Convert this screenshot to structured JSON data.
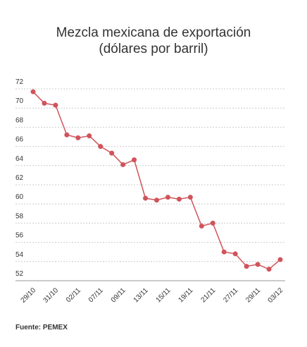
{
  "chart_data": {
    "type": "line",
    "title": "Mezcla mexicana de exportación",
    "subtitle": "(dólares por barril)",
    "source": "Fuente: PEMEX",
    "categories": [
      "29/10",
      null,
      "31/10",
      null,
      "02/11",
      null,
      "07/11",
      null,
      "09/11",
      null,
      "13/11",
      null,
      "15/11",
      null,
      "19/11",
      null,
      "21/11",
      null,
      "27/11",
      null,
      "29/11",
      null,
      "03/12"
    ],
    "series": [
      {
        "name": "Mezcla mexicana",
        "color": "#d0545b",
        "values": [
          71.7,
          70.5,
          70.3,
          67.2,
          66.9,
          67.1,
          66.0,
          65.3,
          64.1,
          64.6,
          60.6,
          60.4,
          60.7,
          60.5,
          60.7,
          57.7,
          58.0,
          55.0,
          54.8,
          53.5,
          53.7,
          53.2,
          54.2
        ]
      }
    ],
    "ylim": [
      52,
      72
    ],
    "yticks": [
      52,
      54,
      56,
      58,
      60,
      62,
      64,
      66,
      68,
      70,
      72
    ],
    "grid": true
  }
}
